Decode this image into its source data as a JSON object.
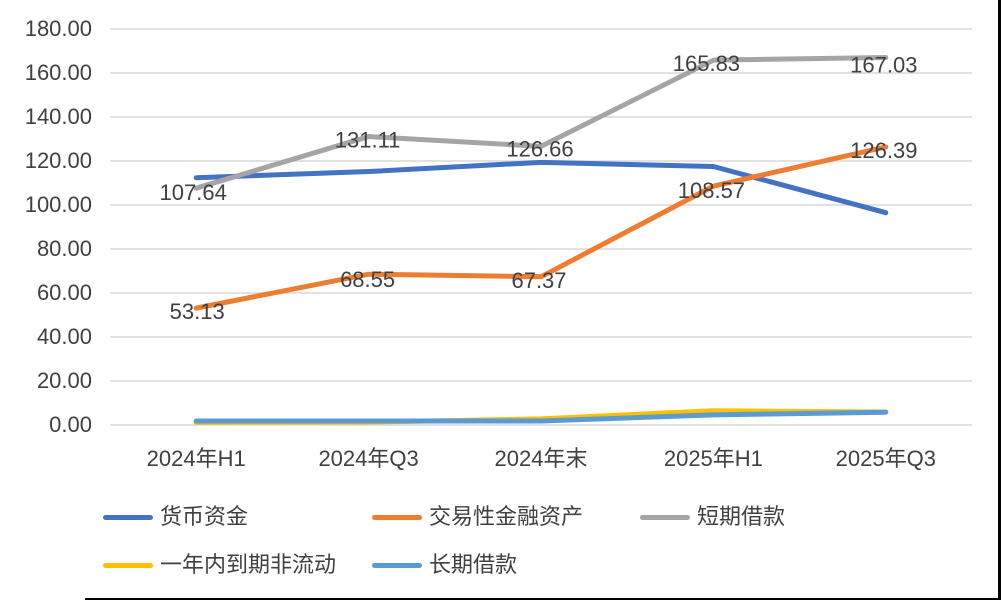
{
  "chart_data": {
    "type": "line",
    "title": "",
    "categories": [
      "2024年H1",
      "2024年Q3",
      "2024年末",
      "2025年H1",
      "2025年Q3"
    ],
    "series": [
      {
        "key": "monetary-funds",
        "name": "货币资金",
        "color": "#4472C4",
        "values": [
          112.4,
          115.2,
          119.4,
          117.5,
          96.5
        ],
        "point_labels": []
      },
      {
        "key": "trading-financial-assets",
        "name": "交易性金融资产",
        "color": "#ED7D31",
        "values": [
          53.13,
          68.55,
          67.37,
          108.57,
          126.39
        ],
        "point_labels": [
          {
            "i": 0,
            "text": "53.13",
            "dx": 1,
            "dy": 3
          },
          {
            "i": 1,
            "text": "68.55",
            "dx": -1,
            "dy": 5
          },
          {
            "i": 2,
            "text": "67.37",
            "dx": -2,
            "dy": 3
          },
          {
            "i": 3,
            "text": "108.57",
            "dx": -2,
            "dy": 4
          },
          {
            "i": 4,
            "text": "126.39",
            "dx": -2,
            "dy": 3
          }
        ]
      },
      {
        "key": "short-term-borrowings",
        "name": "短期借款",
        "color": "#A5A5A5",
        "values": [
          107.64,
          131.11,
          126.66,
          165.83,
          167.03
        ],
        "point_labels": [
          {
            "i": 0,
            "text": "107.64",
            "dx": -3,
            "dy": 4
          },
          {
            "i": 1,
            "text": "131.11",
            "dx": -1,
            "dy": 3
          },
          {
            "i": 2,
            "text": "126.66",
            "dx": -1,
            "dy": 2
          },
          {
            "i": 3,
            "text": "165.83",
            "dx": -7,
            "dy": 3
          },
          {
            "i": 4,
            "text": "167.03",
            "dx": -2,
            "dy": 7
          }
        ]
      },
      {
        "key": "non-current-due-within-one-year",
        "name": "一年内到期非流动",
        "color": "#FFC000",
        "values": [
          1.2,
          1.3,
          2.8,
          6.5,
          5.9
        ],
        "point_labels": []
      },
      {
        "key": "long-term-borrowings",
        "name": "长期借款",
        "color": "#5B9BD5",
        "values": [
          1.8,
          1.8,
          1.8,
          4.6,
          5.8
        ],
        "point_labels": []
      }
    ],
    "ylim": [
      0,
      180
    ],
    "y_step": 20,
    "y_ticks": [
      "0.00",
      "20.00",
      "40.00",
      "60.00",
      "80.00",
      "100.00",
      "120.00",
      "140.00",
      "160.00",
      "180.00"
    ],
    "grid": true,
    "legend_position": "bottom",
    "grid_color": "#D9D9D9",
    "axis_text_color": "#404040",
    "frame_border_color": "#000000"
  }
}
